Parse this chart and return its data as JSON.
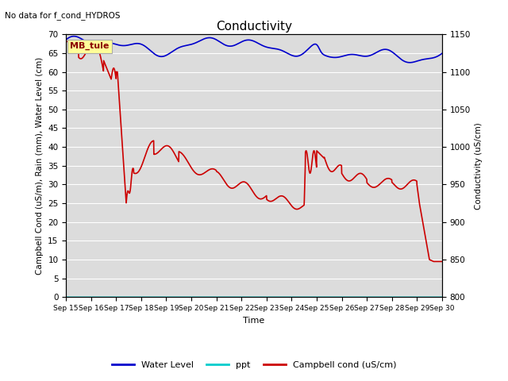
{
  "title": "Conductivity",
  "top_left_text": "No data for f_cond_HYDROS",
  "ylabel_left": "Campbell Cond (uS/m), Rain (mm), Water Level (cm)",
  "ylabel_right": "Conductivity (uS/cm)",
  "xlabel": "Time",
  "ylim_left": [
    0,
    70
  ],
  "ylim_right": [
    800,
    1150
  ],
  "legend_box_label": "MB_tule",
  "x_ticks": [
    "Sep 15",
    "Sep 16",
    "Sep 17",
    "Sep 18",
    "Sep 19",
    "Sep 20",
    "Sep 21",
    "Sep 22",
    "Sep 23",
    "Sep 24",
    "Sep 25",
    "Sep 26",
    "Sep 27",
    "Sep 28",
    "Sep 29",
    "Sep 30"
  ],
  "water_level_color": "#0000cc",
  "ppt_color": "#00cccc",
  "campbell_cond_color": "#cc0000",
  "bg_color": "#dcdcdc",
  "fig_color": "#ffffff"
}
